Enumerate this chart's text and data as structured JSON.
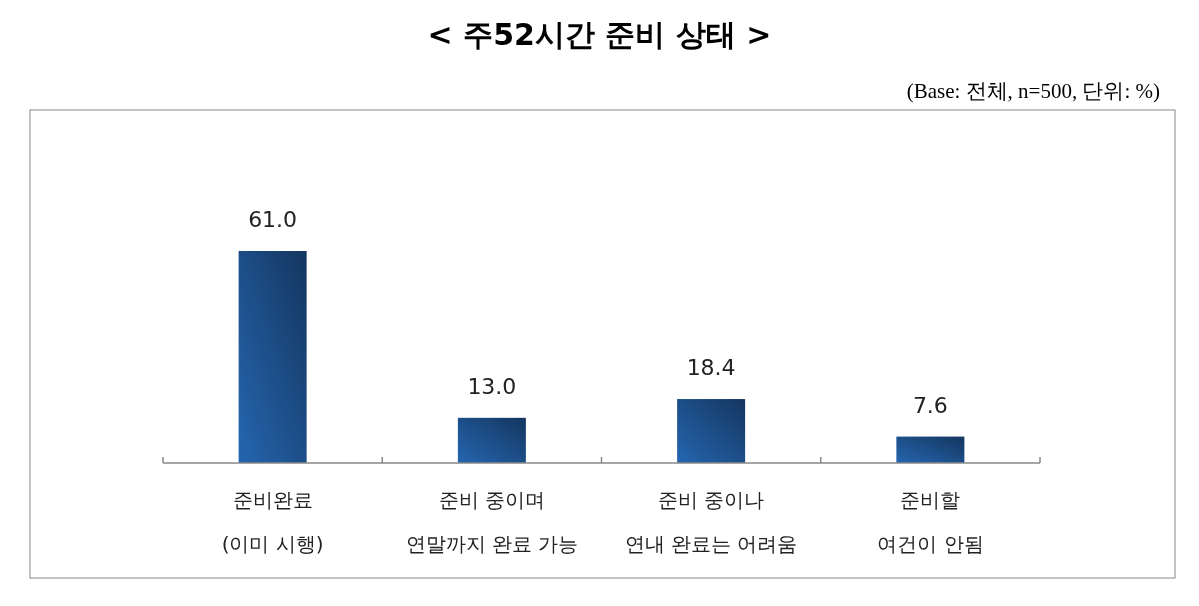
{
  "chart_data": {
    "type": "bar",
    "title": "< 주52시간 준비 상태 >",
    "subtitle": "(Base: 전체, n=500, 단위: %)",
    "categories": [
      "준비완료\n(이미 시행)",
      "준비 중이며\n연말까지 완료 가능",
      "준비 중이나\n연내 완료는 어려움",
      "준비할\n여건이 안됨"
    ],
    "values": [
      61.0,
      13.0,
      18.4,
      7.6
    ],
    "value_labels": [
      "61.0",
      "13.0",
      "18.4",
      "7.6"
    ],
    "color": "#2566b0"
  }
}
